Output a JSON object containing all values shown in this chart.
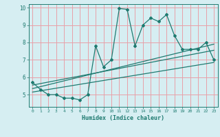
{
  "title": "",
  "xlabel": "Humidex (Indice chaleur)",
  "xlim": [
    -0.5,
    23.5
  ],
  "ylim": [
    4.3,
    10.2
  ],
  "yticks": [
    5,
    6,
    7,
    8,
    9,
    10
  ],
  "xticks": [
    0,
    1,
    2,
    3,
    4,
    5,
    6,
    7,
    8,
    9,
    10,
    11,
    12,
    13,
    14,
    15,
    16,
    17,
    18,
    19,
    20,
    21,
    22,
    23
  ],
  "bg_color": "#d6eef2",
  "line_color": "#1e7a70",
  "grid_color": "#e8a0a8",
  "main_x": [
    0,
    1,
    2,
    3,
    4,
    5,
    6,
    7,
    8,
    9,
    10,
    11,
    12,
    13,
    14,
    15,
    16,
    17,
    18,
    19,
    20,
    21,
    22,
    23
  ],
  "main_y": [
    5.7,
    5.3,
    5.0,
    5.0,
    4.8,
    4.8,
    4.7,
    5.0,
    7.8,
    6.6,
    7.0,
    9.95,
    9.9,
    7.8,
    9.0,
    9.4,
    9.2,
    9.6,
    8.4,
    7.6,
    7.6,
    7.6,
    8.0,
    7.0
  ],
  "trend1_x": [
    0,
    23
  ],
  "trend1_y": [
    5.55,
    7.55
  ],
  "trend2_x": [
    0,
    23
  ],
  "trend2_y": [
    5.35,
    7.9
  ],
  "trend3_x": [
    0,
    23
  ],
  "trend3_y": [
    5.15,
    6.85
  ]
}
